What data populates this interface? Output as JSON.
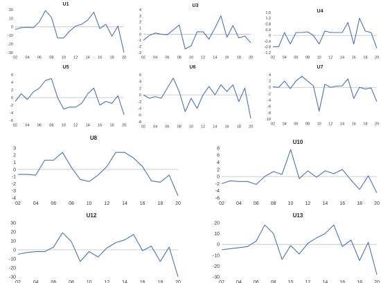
{
  "chart_data": [
    {
      "id": "U1",
      "type": "line",
      "title": "U1",
      "x": [
        2,
        3,
        4,
        5,
        6,
        7,
        8,
        9,
        10,
        11,
        12,
        13,
        14,
        15,
        16,
        17,
        18,
        19,
        20
      ],
      "values": [
        -3,
        -1,
        -0.5,
        -1,
        6,
        19,
        11,
        -13,
        -13,
        -5,
        1,
        3,
        8,
        17,
        -2,
        3,
        -11,
        1,
        -30
      ],
      "yticks": [
        20,
        10,
        0,
        -10,
        -20,
        -30
      ],
      "ylim": [
        -30,
        20
      ],
      "xticks": [
        "02",
        "04",
        "06",
        "08",
        "10",
        "12",
        "14",
        "16",
        "18",
        "20"
      ]
    },
    {
      "id": "U3",
      "type": "line",
      "title": "U3",
      "x": [
        2,
        3,
        4,
        5,
        6,
        7,
        8,
        9,
        10,
        11,
        12,
        13,
        14,
        15,
        16,
        17,
        18,
        19,
        20
      ],
      "values": [
        -1,
        -0.2,
        0.2,
        0,
        -0.1,
        0.7,
        1.5,
        -2.4,
        -1.9,
        0.4,
        0.4,
        -0.8,
        1,
        3,
        -0.5,
        1.4,
        -0.6,
        -0.3,
        -1.4
      ],
      "yticks": [
        4,
        3,
        2,
        1,
        0,
        -1,
        -2,
        -3
      ],
      "ylim": [
        -3,
        4
      ],
      "xticks": [
        "02",
        "04",
        "06",
        "08",
        "10",
        "12",
        "14",
        "16",
        "18",
        "20"
      ]
    },
    {
      "id": "U4",
      "type": "line",
      "title": "U4",
      "x": [
        2,
        3,
        4,
        5,
        6,
        7,
        8,
        9,
        10,
        11,
        12,
        13,
        14,
        15,
        16,
        17,
        18,
        19,
        20
      ],
      "values": [
        -0.8,
        -0.8,
        0.2,
        -0.6,
        0.2,
        0.2,
        0.25,
        0,
        -0.6,
        0.3,
        0.2,
        0.2,
        0.2,
        0.9,
        -0.6,
        1.2,
        0.3,
        0.2,
        -0.9
      ],
      "yticks": [
        1.6,
        1.2,
        0.8,
        0.4,
        0,
        -0.4,
        -0.8,
        -1.2
      ],
      "ylim": [
        -1.2,
        1.6
      ],
      "xticks": [
        "02",
        "04",
        "06",
        "08",
        "10",
        "12",
        "14",
        "16",
        "18",
        "20"
      ]
    },
    {
      "id": "U5",
      "type": "line",
      "title": "U5",
      "x": [
        2,
        3,
        4,
        5,
        6,
        7,
        8,
        9,
        10,
        11,
        12,
        13,
        14,
        15,
        16,
        17,
        18,
        19,
        20
      ],
      "values": [
        -1,
        1,
        -0.5,
        1.5,
        2.5,
        4.5,
        5,
        0,
        -3,
        -2.5,
        -2.5,
        -1.5,
        1,
        2.5,
        -2,
        -1,
        -1.5,
        0.5,
        -4.5
      ],
      "yticks": [
        6,
        4,
        2,
        0,
        -2,
        -4,
        -6
      ],
      "ylim": [
        -6,
        6
      ],
      "xticks": [
        "02",
        "04",
        "06",
        "08",
        "10",
        "12",
        "14",
        "16",
        "18",
        "20"
      ]
    },
    {
      "id": "U6",
      "type": "line",
      "title": "U6",
      "x": [
        2,
        3,
        4,
        5,
        6,
        7,
        8,
        9,
        10,
        11,
        12,
        13,
        14,
        15,
        16,
        17,
        18,
        19,
        20
      ],
      "values": [
        0,
        -1,
        -0.5,
        -1,
        2,
        5,
        1,
        -5,
        -1,
        -4,
        0,
        2.5,
        0,
        3,
        1,
        3,
        -2,
        2,
        -7
      ],
      "yticks": [
        6,
        4,
        2,
        0,
        -2,
        -4,
        -6,
        -8
      ],
      "ylim": [
        -8,
        6
      ],
      "xticks": [
        "02",
        "04",
        "06",
        "08",
        "10",
        "12",
        "14",
        "16",
        "18",
        "20"
      ]
    },
    {
      "id": "U7",
      "type": "line",
      "title": "U7",
      "x": [
        2,
        3,
        4,
        5,
        6,
        7,
        8,
        9,
        10,
        11,
        12,
        13,
        14,
        15,
        16,
        17,
        18,
        19,
        20
      ],
      "values": [
        0.2,
        0,
        2,
        -0.4,
        2,
        3.5,
        2,
        0.5,
        -7.5,
        1,
        0,
        0.4,
        0.5,
        2.7,
        -3.5,
        0,
        -0.5,
        -0.2,
        -4.5
      ],
      "yticks": [
        4,
        2,
        0,
        -2,
        -4,
        -6,
        -8,
        -10
      ],
      "ylim": [
        -10,
        4
      ],
      "xticks": [
        "02",
        "04",
        "06",
        "08",
        "10",
        "12",
        "14",
        "16",
        "18",
        "20"
      ]
    },
    {
      "id": "U8",
      "type": "line",
      "title": "U8",
      "x": [
        2,
        3,
        4,
        5,
        6,
        7,
        8,
        9,
        10,
        11,
        12,
        13,
        14,
        15,
        16,
        17,
        18,
        19,
        20
      ],
      "values": [
        -0.7,
        -0.7,
        -0.8,
        1.3,
        1.3,
        2.4,
        0.3,
        -1.4,
        -1.7,
        -0.8,
        0.4,
        2.4,
        2.4,
        1.6,
        0.4,
        -1.6,
        -1.8,
        -0.8,
        -3.7
      ],
      "yticks": [
        3,
        2,
        1,
        0,
        -1,
        -2,
        -3,
        -4
      ],
      "ylim": [
        -4,
        3
      ],
      "xticks": [
        "02",
        "04",
        "06",
        "08",
        "10",
        "12",
        "14",
        "16",
        "18",
        "20"
      ]
    },
    {
      "id": "U10",
      "type": "line",
      "title": "U10",
      "x": [
        2,
        3,
        4,
        5,
        6,
        7,
        8,
        9,
        10,
        11,
        12,
        13,
        14,
        15,
        16,
        17,
        18,
        19,
        20
      ],
      "values": [
        -2,
        -1.2,
        -1.4,
        -1.4,
        -2.2,
        0,
        1.4,
        0.6,
        7.6,
        -0.6,
        1.6,
        -0.2,
        1.6,
        0.8,
        2,
        -1,
        -3.6,
        0.2,
        -4.6
      ],
      "yticks": [
        8,
        6,
        4,
        2,
        0,
        -2,
        -4,
        -6
      ],
      "ylim": [
        -6,
        8
      ],
      "xticks": [
        "02",
        "04",
        "06",
        "08",
        "10",
        "12",
        "14",
        "16",
        "18",
        "20"
      ]
    },
    {
      "id": "U12",
      "type": "line",
      "title": "U12",
      "x": [
        2,
        3,
        4,
        5,
        6,
        7,
        8,
        9,
        10,
        11,
        12,
        13,
        14,
        15,
        16,
        17,
        18,
        19,
        20
      ],
      "values": [
        -5,
        -3,
        -2,
        -2,
        3,
        19,
        9,
        -13,
        -2,
        -8,
        2,
        8,
        11,
        17,
        -1,
        4,
        -13,
        3,
        -30
      ],
      "yticks": [
        30,
        20,
        10,
        0,
        -10,
        -20,
        -30
      ],
      "ylim": [
        -30,
        30
      ],
      "xticks": [
        "02",
        "04",
        "06",
        "08",
        "10",
        "12",
        "14",
        "16",
        "18",
        "20"
      ]
    },
    {
      "id": "U13",
      "type": "line",
      "title": "U13",
      "x": [
        2,
        3,
        4,
        5,
        6,
        7,
        8,
        9,
        10,
        11,
        12,
        13,
        14,
        15,
        16,
        17,
        18,
        19,
        20
      ],
      "values": [
        -5,
        -4,
        -3,
        -2,
        3,
        18,
        10,
        -14,
        -1,
        -9,
        1,
        6,
        10,
        18,
        -2,
        4,
        -15,
        2,
        -28
      ],
      "yticks": [
        20,
        10,
        0,
        -10,
        -20,
        -30
      ],
      "ylim": [
        -30,
        20
      ],
      "xticks": [
        "02",
        "04",
        "06",
        "08",
        "10",
        "12",
        "14",
        "16",
        "18",
        "20"
      ]
    }
  ],
  "colors": {
    "line": "#4a72b0",
    "axis": "#bdbdbd"
  }
}
